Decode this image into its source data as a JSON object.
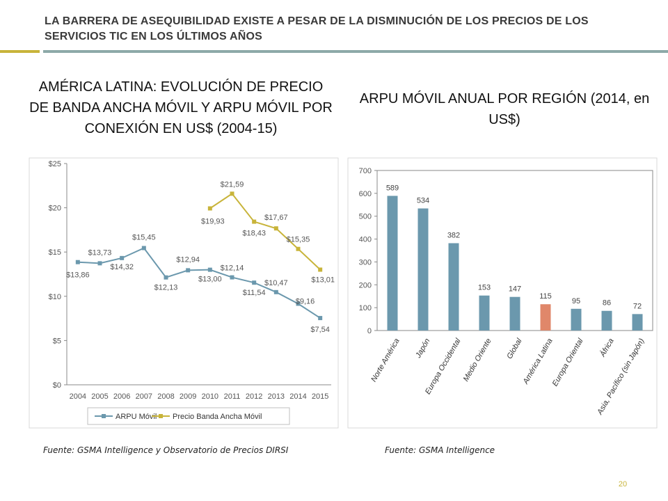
{
  "slide": {
    "title": "LA BARRERA DE ASEQUIBILIDAD EXISTE A PESAR DE LA DISMINUCIÓN DE LOS PRECIOS DE LOS SERVICIOS TIC EN LOS ÚLTIMOS AÑOS",
    "accent_color": "#c8b43a",
    "rule_color": "#8da9a8",
    "page_number": "20",
    "page_number_color": "#c8b43a"
  },
  "left_panel": {
    "title": "AMÉRICA LATINA: EVOLUCIÓN DE PRECIO DE BANDA ANCHA MÓVIL Y ARPU MÓVIL POR CONEXIÓN EN US$ (2004-15)",
    "source": "Fuente: GSMA Intelligence y Observatorio de Precios DIRSI"
  },
  "right_panel": {
    "title": "ARPU MÓVIL ANUAL POR REGIÓN (2014, en US$)",
    "source": "Fuente: GSMA Intelligence"
  },
  "chart_data": [
    {
      "type": "line",
      "x": [
        "2004",
        "2005",
        "2006",
        "2007",
        "2008",
        "2009",
        "2010",
        "2011",
        "2012",
        "2013",
        "2014",
        "2015"
      ],
      "y_ticks": [
        "$0",
        "$5",
        "$10",
        "$15",
        "$20",
        "$25"
      ],
      "ylim": [
        0,
        25
      ],
      "grid": false,
      "legend_position": "bottom",
      "series": [
        {
          "name": "ARPU Móvil",
          "color": "#6b98ad",
          "values": [
            13.86,
            13.73,
            14.32,
            15.45,
            12.13,
            12.94,
            13.0,
            12.14,
            11.54,
            10.47,
            9.16,
            7.54
          ],
          "labels": [
            "$13,86",
            "$13,73",
            "$14,32",
            "$15,45",
            "$12,13",
            "$12,94",
            "$13,00",
            "$12,14",
            "$11,54",
            "$10,47",
            "$9,16",
            "$7,54"
          ]
        },
        {
          "name": "Precio Banda Ancha Móvil",
          "color": "#c8b43a",
          "values": [
            null,
            null,
            null,
            null,
            null,
            null,
            19.93,
            21.59,
            18.43,
            17.67,
            15.35,
            13.01
          ],
          "labels": [
            "",
            "",
            "",
            "",
            "",
            "",
            "$19,93",
            "$21,59",
            "$18,43",
            "$17,67",
            "$15,35",
            "$13,01"
          ]
        }
      ]
    },
    {
      "type": "bar",
      "categories": [
        "Norte América",
        "Japón",
        "Europa Occidental",
        "Medio Oriente",
        "Global",
        "América Latina",
        "Europa Oriental",
        "África",
        "Asia, Pacífico (sin Japón)"
      ],
      "values": [
        589,
        534,
        382,
        153,
        147,
        115,
        95,
        86,
        72
      ],
      "y_ticks": [
        "0",
        "100",
        "200",
        "300",
        "400",
        "500",
        "600",
        "700"
      ],
      "ylim": [
        0,
        700
      ],
      "grid": false,
      "bar_color": "#6b98ad",
      "highlight_color": "#e0876a",
      "highlight_category": "América Latina"
    }
  ]
}
